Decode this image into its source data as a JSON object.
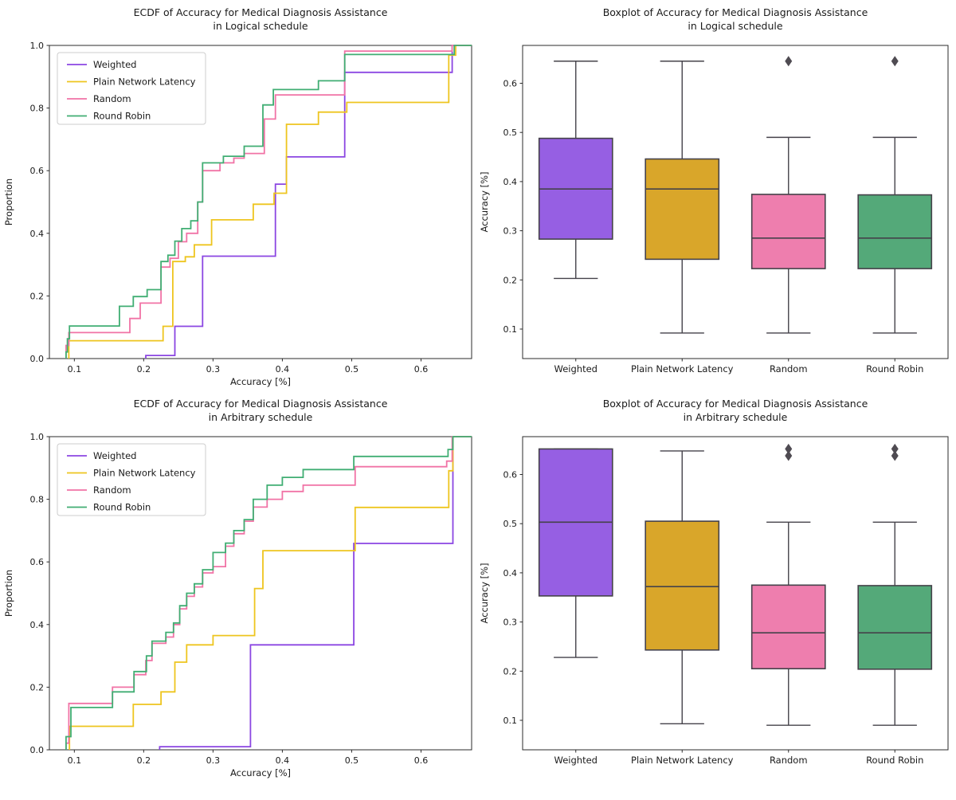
{
  "figure": {
    "background": "#ffffff",
    "text_color": "#1a1a1a",
    "spine_color": "#2b2b2b",
    "box_edge_color": "#45424a",
    "outlier_color": "#4f4b52"
  },
  "palette": {
    "series": [
      {
        "name": "Weighted",
        "line": "#8b46e2",
        "fill": "#965fe3"
      },
      {
        "name": "Plain Network Latency",
        "line": "#eec51f",
        "fill": "#d9a62a"
      },
      {
        "name": "Random",
        "line": "#f173a6",
        "fill": "#ee7eae"
      },
      {
        "name": "Round Robin",
        "line": "#40ae73",
        "fill": "#54a979"
      }
    ]
  },
  "chart_data": [
    {
      "id": "ecdf-logical",
      "type": "line",
      "subtype": "ecdf",
      "title": "ECDF of Accuracy for Medical Diagnosis Assistance",
      "subtitle": "in Logical schedule",
      "xlabel": "Accuracy [%]",
      "ylabel": "Proportion",
      "xlim": [
        0.064,
        0.673
      ],
      "ylim": [
        0,
        1
      ],
      "xticks": [
        0.1,
        0.2,
        0.3,
        0.4,
        0.5,
        0.6
      ],
      "yticks": [
        0.0,
        0.2,
        0.4,
        0.6,
        0.8,
        1.0
      ],
      "grid": false,
      "legend": {
        "position": "upper left",
        "entries": [
          "Weighted",
          "Plain Network Latency",
          "Random",
          "Round Robin"
        ]
      },
      "series": [
        {
          "name": "Weighted",
          "points": [
            [
              0.203,
              0.01
            ],
            [
              0.245,
              0.103
            ],
            [
              0.285,
              0.327
            ],
            [
              0.39,
              0.557
            ],
            [
              0.406,
              0.644
            ],
            [
              0.49,
              0.914
            ],
            [
              0.645,
              1.0
            ]
          ]
        },
        {
          "name": "Plain Network Latency",
          "points": [
            [
              0.092,
              0.057
            ],
            [
              0.228,
              0.103
            ],
            [
              0.242,
              0.31
            ],
            [
              0.26,
              0.325
            ],
            [
              0.273,
              0.363
            ],
            [
              0.298,
              0.443
            ],
            [
              0.358,
              0.493
            ],
            [
              0.388,
              0.528
            ],
            [
              0.406,
              0.748
            ],
            [
              0.452,
              0.787
            ],
            [
              0.493,
              0.818
            ],
            [
              0.64,
              0.969
            ],
            [
              0.65,
              1.0
            ]
          ]
        },
        {
          "name": "Random",
          "points": [
            [
              0.088,
              0.042
            ],
            [
              0.092,
              0.083
            ],
            [
              0.18,
              0.128
            ],
            [
              0.195,
              0.177
            ],
            [
              0.225,
              0.292
            ],
            [
              0.238,
              0.32
            ],
            [
              0.25,
              0.373
            ],
            [
              0.262,
              0.4
            ],
            [
              0.278,
              0.5
            ],
            [
              0.285,
              0.6
            ],
            [
              0.31,
              0.625
            ],
            [
              0.33,
              0.64
            ],
            [
              0.345,
              0.655
            ],
            [
              0.374,
              0.765
            ],
            [
              0.39,
              0.842
            ],
            [
              0.49,
              0.982
            ],
            [
              0.645,
              1.0
            ]
          ]
        },
        {
          "name": "Round Robin",
          "points": [
            [
              0.088,
              0.021
            ],
            [
              0.09,
              0.063
            ],
            [
              0.093,
              0.104
            ],
            [
              0.165,
              0.167
            ],
            [
              0.185,
              0.198
            ],
            [
              0.205,
              0.22
            ],
            [
              0.225,
              0.31
            ],
            [
              0.235,
              0.33
            ],
            [
              0.245,
              0.375
            ],
            [
              0.255,
              0.415
            ],
            [
              0.268,
              0.44
            ],
            [
              0.278,
              0.5
            ],
            [
              0.285,
              0.625
            ],
            [
              0.315,
              0.646
            ],
            [
              0.345,
              0.678
            ],
            [
              0.372,
              0.81
            ],
            [
              0.387,
              0.859
            ],
            [
              0.452,
              0.887
            ],
            [
              0.49,
              0.971
            ],
            [
              0.648,
              1.0
            ]
          ]
        }
      ]
    },
    {
      "id": "box-logical",
      "type": "boxplot",
      "title": "Boxplot of Accuracy for Medical Diagnosis Assistance",
      "subtitle": "in Logical schedule",
      "xlabel": "",
      "ylabel": "Accuracy [%]",
      "ylim": [
        0.04,
        0.677
      ],
      "yticks": [
        0.1,
        0.2,
        0.3,
        0.4,
        0.5,
        0.6
      ],
      "grid": false,
      "categories": [
        "Weighted",
        "Plain Network Latency",
        "Random",
        "Round Robin"
      ],
      "boxes": [
        {
          "category": "Weighted",
          "min": 0.203,
          "q1": 0.283,
          "median": 0.385,
          "q3": 0.488,
          "max": 0.645,
          "outliers": []
        },
        {
          "category": "Plain Network Latency",
          "min": 0.092,
          "q1": 0.242,
          "median": 0.385,
          "q3": 0.446,
          "max": 0.645,
          "outliers": []
        },
        {
          "category": "Random",
          "min": 0.092,
          "q1": 0.223,
          "median": 0.285,
          "q3": 0.374,
          "max": 0.49,
          "outliers": [
            0.645
          ]
        },
        {
          "category": "Round Robin",
          "min": 0.092,
          "q1": 0.223,
          "median": 0.285,
          "q3": 0.373,
          "max": 0.49,
          "outliers": [
            0.645
          ]
        }
      ]
    },
    {
      "id": "ecdf-arbitrary",
      "type": "line",
      "subtype": "ecdf",
      "title": "ECDF of Accuracy for Medical Diagnosis Assistance",
      "subtitle": "in Arbitrary schedule",
      "xlabel": "Accuracy [%]",
      "ylabel": "Proportion",
      "xlim": [
        0.064,
        0.673
      ],
      "ylim": [
        0,
        1
      ],
      "xticks": [
        0.1,
        0.2,
        0.3,
        0.4,
        0.5,
        0.6
      ],
      "yticks": [
        0.0,
        0.2,
        0.4,
        0.6,
        0.8,
        1.0
      ],
      "grid": false,
      "legend": {
        "position": "upper left",
        "entries": [
          "Weighted",
          "Plain Network Latency",
          "Random",
          "Round Robin"
        ]
      },
      "series": [
        {
          "name": "Weighted",
          "points": [
            [
              0.223,
              0.01
            ],
            [
              0.354,
              0.335
            ],
            [
              0.503,
              0.659
            ],
            [
              0.646,
              1.0
            ]
          ]
        },
        {
          "name": "Plain Network Latency",
          "points": [
            [
              0.093,
              0.075
            ],
            [
              0.185,
              0.145
            ],
            [
              0.225,
              0.185
            ],
            [
              0.245,
              0.28
            ],
            [
              0.262,
              0.335
            ],
            [
              0.3,
              0.365
            ],
            [
              0.36,
              0.515
            ],
            [
              0.372,
              0.636
            ],
            [
              0.505,
              0.774
            ],
            [
              0.64,
              0.891
            ],
            [
              0.646,
              1.0
            ]
          ]
        },
        {
          "name": "Random",
          "points": [
            [
              0.088,
              0.021
            ],
            [
              0.092,
              0.148
            ],
            [
              0.155,
              0.2
            ],
            [
              0.186,
              0.24
            ],
            [
              0.203,
              0.285
            ],
            [
              0.212,
              0.34
            ],
            [
              0.232,
              0.36
            ],
            [
              0.243,
              0.4
            ],
            [
              0.252,
              0.45
            ],
            [
              0.262,
              0.49
            ],
            [
              0.273,
              0.52
            ],
            [
              0.285,
              0.565
            ],
            [
              0.3,
              0.585
            ],
            [
              0.318,
              0.65
            ],
            [
              0.33,
              0.69
            ],
            [
              0.345,
              0.73
            ],
            [
              0.358,
              0.775
            ],
            [
              0.378,
              0.8
            ],
            [
              0.4,
              0.825
            ],
            [
              0.43,
              0.845
            ],
            [
              0.505,
              0.904
            ],
            [
              0.637,
              0.922
            ],
            [
              0.645,
              1.0
            ]
          ]
        },
        {
          "name": "Round Robin",
          "points": [
            [
              0.088,
              0.042
            ],
            [
              0.095,
              0.135
            ],
            [
              0.155,
              0.185
            ],
            [
              0.186,
              0.25
            ],
            [
              0.204,
              0.3
            ],
            [
              0.212,
              0.347
            ],
            [
              0.232,
              0.375
            ],
            [
              0.243,
              0.405
            ],
            [
              0.252,
              0.46
            ],
            [
              0.262,
              0.5
            ],
            [
              0.273,
              0.53
            ],
            [
              0.285,
              0.575
            ],
            [
              0.3,
              0.63
            ],
            [
              0.318,
              0.66
            ],
            [
              0.33,
              0.7
            ],
            [
              0.345,
              0.735
            ],
            [
              0.358,
              0.8
            ],
            [
              0.378,
              0.845
            ],
            [
              0.4,
              0.87
            ],
            [
              0.43,
              0.895
            ],
            [
              0.503,
              0.937
            ],
            [
              0.639,
              0.959
            ],
            [
              0.646,
              1.0
            ]
          ]
        }
      ]
    },
    {
      "id": "box-arbitrary",
      "type": "boxplot",
      "title": "Boxplot of Accuracy for Medical Diagnosis Assistance",
      "subtitle": "in Arbitrary schedule",
      "xlabel": "",
      "ylabel": "Accuracy [%]",
      "ylim": [
        0.04,
        0.677
      ],
      "yticks": [
        0.1,
        0.2,
        0.3,
        0.4,
        0.5,
        0.6
      ],
      "grid": false,
      "categories": [
        "Weighted",
        "Plain Network Latency",
        "Random",
        "Round Robin"
      ],
      "boxes": [
        {
          "category": "Weighted",
          "min": 0.228,
          "q1": 0.353,
          "median": 0.503,
          "q3": 0.652,
          "max": 0.652,
          "outliers": []
        },
        {
          "category": "Plain Network Latency",
          "min": 0.093,
          "q1": 0.243,
          "median": 0.372,
          "q3": 0.505,
          "max": 0.648,
          "outliers": []
        },
        {
          "category": "Random",
          "min": 0.09,
          "q1": 0.205,
          "median": 0.278,
          "q3": 0.375,
          "max": 0.503,
          "outliers": [
            0.638,
            0.652
          ]
        },
        {
          "category": "Round Robin",
          "min": 0.09,
          "q1": 0.204,
          "median": 0.278,
          "q3": 0.374,
          "max": 0.503,
          "outliers": [
            0.638,
            0.652
          ]
        }
      ]
    }
  ]
}
